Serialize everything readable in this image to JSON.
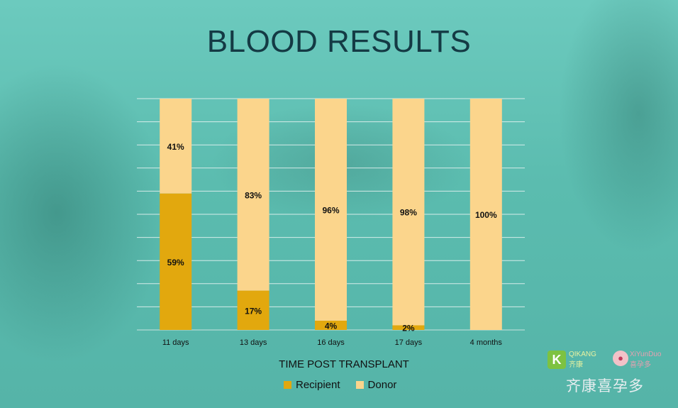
{
  "chart_data": {
    "type": "bar",
    "stacked": true,
    "title": "BLOOD RESULTS",
    "xlabel": "TIME POST TRANSPLANT",
    "ylim": [
      0,
      100
    ],
    "grid": true,
    "legend_position": "bottom",
    "categories": [
      "11 days",
      "13 days",
      "16 days",
      "17 days",
      "4 months"
    ],
    "series": [
      {
        "name": "Recipient",
        "color": "#e2a80e",
        "values": [
          59,
          17,
          4,
          2,
          0
        ],
        "labels": [
          "59%",
          "17%",
          "4%",
          "2%",
          ""
        ]
      },
      {
        "name": "Donor",
        "color": "#fbd58c",
        "values": [
          41,
          83,
          96,
          98,
          100
        ],
        "labels": [
          "41%",
          "83%",
          "96%",
          "98%",
          "100%"
        ]
      }
    ]
  },
  "watermark": {
    "brand1": "QIKANG",
    "brand1_cn": "齐康",
    "brand2": "XiYunDuo",
    "brand2_cn": "喜孕多",
    "brand_full_cn": "齐康喜孕多"
  }
}
